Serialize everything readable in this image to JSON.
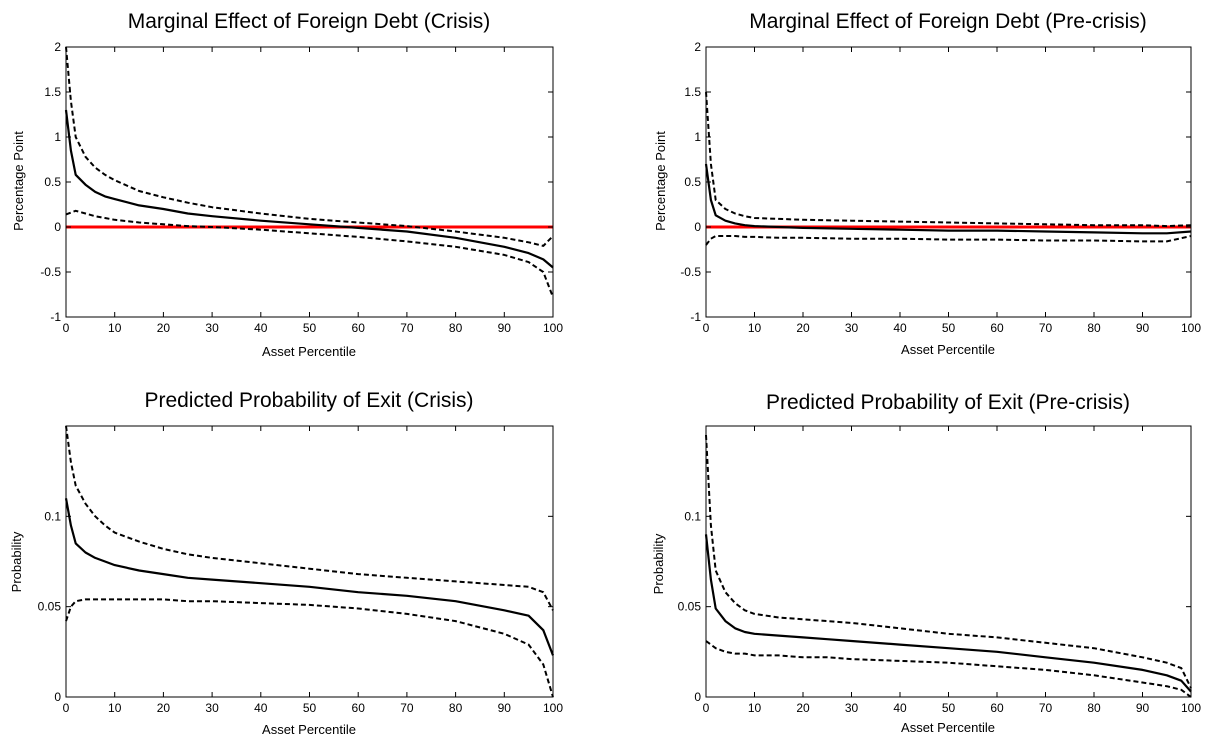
{
  "chart_data": [
    {
      "type": "line",
      "title": "Marginal Effect of Foreign Debt (Crisis)",
      "xlabel": "Asset Percentile",
      "ylabel": "Percentage Point",
      "xlim": [
        0,
        100
      ],
      "ylim": [
        -1,
        2
      ],
      "xticks": [
        0,
        10,
        20,
        30,
        40,
        50,
        60,
        70,
        80,
        90,
        100
      ],
      "yticks": [
        -1,
        -0.5,
        0,
        0.5,
        1,
        1.5,
        2
      ],
      "ytick_labels": [
        "-1",
        "-0.5",
        "0",
        "0.5",
        "1",
        "1.5",
        "2"
      ],
      "grid": false,
      "reference_line": {
        "y": 0,
        "color": "#ff0000"
      },
      "series": [
        {
          "style": "solid",
          "x": [
            0,
            1,
            2,
            4,
            6,
            8,
            10,
            15,
            20,
            25,
            30,
            40,
            50,
            60,
            70,
            80,
            90,
            95,
            98,
            100
          ],
          "values": [
            1.3,
            0.85,
            0.58,
            0.47,
            0.39,
            0.34,
            0.31,
            0.24,
            0.2,
            0.15,
            0.12,
            0.07,
            0.03,
            -0.01,
            -0.05,
            -0.12,
            -0.22,
            -0.29,
            -0.36,
            -0.45
          ]
        },
        {
          "style": "dashed",
          "x": [
            0,
            1,
            2,
            4,
            6,
            8,
            10,
            15,
            20,
            25,
            30,
            40,
            50,
            60,
            70,
            80,
            90,
            95,
            98,
            100
          ],
          "values": [
            2.0,
            1.4,
            1.0,
            0.78,
            0.66,
            0.58,
            0.52,
            0.4,
            0.33,
            0.27,
            0.22,
            0.15,
            0.09,
            0.05,
            0.01,
            -0.05,
            -0.12,
            -0.17,
            -0.21,
            -0.1
          ]
        },
        {
          "style": "dashed",
          "x": [
            0,
            2,
            4,
            6,
            8,
            10,
            15,
            20,
            25,
            30,
            40,
            50,
            60,
            70,
            80,
            90,
            95,
            98,
            100
          ],
          "values": [
            0.14,
            0.18,
            0.15,
            0.12,
            0.1,
            0.08,
            0.05,
            0.03,
            0.01,
            0.0,
            -0.03,
            -0.07,
            -0.11,
            -0.16,
            -0.22,
            -0.31,
            -0.39,
            -0.5,
            -0.78
          ]
        }
      ]
    },
    {
      "type": "line",
      "title": "Marginal Effect of Foreign Debt (Pre-crisis)",
      "xlabel": "Asset Percentile",
      "ylabel": "Percentage Point",
      "xlim": [
        0,
        100
      ],
      "ylim": [
        -1,
        2
      ],
      "xticks": [
        0,
        10,
        20,
        30,
        40,
        50,
        60,
        70,
        80,
        90,
        100
      ],
      "yticks": [
        -1,
        -0.5,
        0,
        0.5,
        1,
        1.5,
        2
      ],
      "ytick_labels": [
        "-1",
        "-0.5",
        "0",
        "0.5",
        "1",
        "1.5",
        "2"
      ],
      "grid": false,
      "reference_line": {
        "y": 0,
        "color": "#ff0000"
      },
      "series": [
        {
          "style": "solid",
          "x": [
            0,
            1,
            2,
            4,
            6,
            8,
            10,
            15,
            20,
            30,
            40,
            50,
            60,
            70,
            80,
            90,
            95,
            100
          ],
          "values": [
            0.7,
            0.3,
            0.13,
            0.07,
            0.04,
            0.02,
            0.01,
            0.0,
            -0.01,
            -0.02,
            -0.03,
            -0.04,
            -0.04,
            -0.05,
            -0.06,
            -0.07,
            -0.07,
            -0.05
          ]
        },
        {
          "style": "dashed",
          "x": [
            0,
            1,
            2,
            4,
            6,
            8,
            10,
            15,
            20,
            30,
            40,
            50,
            60,
            70,
            80,
            90,
            95,
            100
          ],
          "values": [
            1.5,
            0.7,
            0.3,
            0.2,
            0.15,
            0.12,
            0.1,
            0.09,
            0.08,
            0.07,
            0.06,
            0.05,
            0.04,
            0.03,
            0.02,
            0.02,
            0.01,
            0.02
          ]
        },
        {
          "style": "dashed",
          "x": [
            0,
            1,
            2,
            4,
            6,
            8,
            10,
            15,
            20,
            30,
            40,
            50,
            60,
            70,
            80,
            90,
            95,
            100
          ],
          "values": [
            -0.2,
            -0.13,
            -0.1,
            -0.1,
            -0.1,
            -0.11,
            -0.11,
            -0.12,
            -0.12,
            -0.13,
            -0.13,
            -0.14,
            -0.14,
            -0.15,
            -0.15,
            -0.16,
            -0.16,
            -0.1
          ]
        }
      ]
    },
    {
      "type": "line",
      "title": "Predicted Probability of Exit (Crisis)",
      "xlabel": "Asset Percentile",
      "ylabel": "Probability",
      "xlim": [
        0,
        100
      ],
      "ylim": [
        0,
        0.15
      ],
      "xticks": [
        0,
        10,
        20,
        30,
        40,
        50,
        60,
        70,
        80,
        90,
        100
      ],
      "yticks": [
        0,
        0.05,
        0.1
      ],
      "ytick_labels": [
        "0",
        "0.05",
        "0.1"
      ],
      "grid": false,
      "series": [
        {
          "style": "solid",
          "x": [
            0,
            1,
            2,
            4,
            6,
            8,
            10,
            15,
            20,
            25,
            30,
            40,
            50,
            60,
            70,
            80,
            90,
            95,
            98,
            100
          ],
          "values": [
            0.11,
            0.095,
            0.085,
            0.08,
            0.077,
            0.075,
            0.073,
            0.07,
            0.068,
            0.066,
            0.065,
            0.063,
            0.061,
            0.058,
            0.056,
            0.053,
            0.048,
            0.045,
            0.037,
            0.023
          ]
        },
        {
          "style": "dashed",
          "x": [
            0,
            1,
            2,
            4,
            6,
            8,
            10,
            15,
            20,
            25,
            30,
            40,
            50,
            60,
            70,
            80,
            90,
            95,
            98,
            100
          ],
          "values": [
            0.15,
            0.13,
            0.117,
            0.107,
            0.1,
            0.095,
            0.091,
            0.086,
            0.082,
            0.079,
            0.077,
            0.074,
            0.071,
            0.068,
            0.066,
            0.064,
            0.062,
            0.061,
            0.058,
            0.048
          ]
        },
        {
          "style": "dashed",
          "x": [
            0,
            1,
            2,
            4,
            6,
            8,
            10,
            15,
            20,
            25,
            30,
            40,
            50,
            60,
            70,
            80,
            90,
            95,
            98,
            100
          ],
          "values": [
            0.042,
            0.05,
            0.053,
            0.054,
            0.054,
            0.054,
            0.054,
            0.054,
            0.054,
            0.053,
            0.053,
            0.052,
            0.051,
            0.049,
            0.046,
            0.042,
            0.035,
            0.029,
            0.018,
            0.0
          ]
        }
      ]
    },
    {
      "type": "line",
      "title": "Predicted Probability of Exit (Pre-crisis)",
      "xlabel": "Asset Percentile",
      "ylabel": "Probability",
      "xlim": [
        0,
        100
      ],
      "ylim": [
        0,
        0.15
      ],
      "xticks": [
        0,
        10,
        20,
        30,
        40,
        50,
        60,
        70,
        80,
        90,
        100
      ],
      "yticks": [
        0,
        0.05,
        0.1
      ],
      "ytick_labels": [
        "0",
        "0.05",
        "0.1"
      ],
      "grid": false,
      "series": [
        {
          "style": "solid",
          "x": [
            0,
            1,
            2,
            4,
            6,
            8,
            10,
            15,
            20,
            25,
            30,
            40,
            50,
            60,
            70,
            80,
            90,
            95,
            98,
            100
          ],
          "values": [
            0.09,
            0.065,
            0.049,
            0.042,
            0.038,
            0.036,
            0.035,
            0.034,
            0.033,
            0.032,
            0.031,
            0.029,
            0.027,
            0.025,
            0.022,
            0.019,
            0.015,
            0.012,
            0.009,
            0.003
          ]
        },
        {
          "style": "dashed",
          "x": [
            0,
            1,
            2,
            4,
            6,
            8,
            10,
            15,
            20,
            25,
            30,
            40,
            50,
            60,
            70,
            80,
            90,
            95,
            98,
            100
          ],
          "values": [
            0.145,
            0.095,
            0.07,
            0.058,
            0.052,
            0.048,
            0.046,
            0.044,
            0.043,
            0.042,
            0.041,
            0.038,
            0.035,
            0.033,
            0.03,
            0.027,
            0.022,
            0.019,
            0.016,
            0.005
          ]
        },
        {
          "style": "dashed",
          "x": [
            0,
            1,
            2,
            4,
            6,
            8,
            10,
            15,
            20,
            25,
            30,
            40,
            50,
            60,
            70,
            80,
            90,
            95,
            98,
            100
          ],
          "values": [
            0.031,
            0.029,
            0.027,
            0.025,
            0.024,
            0.024,
            0.023,
            0.023,
            0.022,
            0.022,
            0.021,
            0.02,
            0.019,
            0.017,
            0.015,
            0.012,
            0.008,
            0.006,
            0.004,
            0.0
          ]
        }
      ]
    }
  ]
}
